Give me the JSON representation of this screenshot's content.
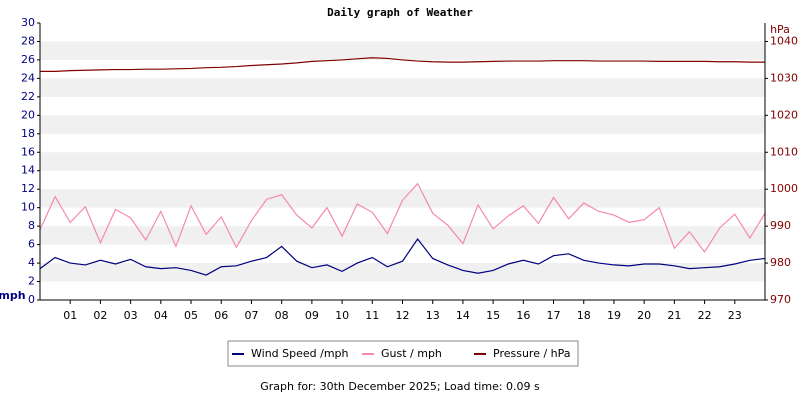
{
  "chart_data": {
    "type": "line",
    "title": "Daily graph of Weather",
    "y_label": "mph",
    "y2_label": "hPa",
    "footer": "Graph for: 30th December 2025; Load time: 0.09 s",
    "x": [
      0,
      0.5,
      1,
      1.5,
      2,
      2.5,
      3,
      3.5,
      4,
      4.5,
      5,
      5.5,
      6,
      6.5,
      7,
      7.5,
      8,
      8.5,
      9,
      9.5,
      10,
      10.5,
      11,
      11.5,
      12,
      12.5,
      13,
      13.5,
      14,
      14.5,
      15,
      15.5,
      16,
      16.5,
      17,
      17.5,
      18,
      18.5,
      19,
      19.5,
      20,
      20.5,
      21,
      21.5,
      22,
      22.5,
      23,
      23.5,
      24
    ],
    "xlim": [
      0,
      24
    ],
    "xticks": [
      {
        "value": 1,
        "label": "01"
      },
      {
        "value": 2,
        "label": "02"
      },
      {
        "value": 3,
        "label": "03"
      },
      {
        "value": 4,
        "label": "04"
      },
      {
        "value": 5,
        "label": "05"
      },
      {
        "value": 6,
        "label": "06"
      },
      {
        "value": 7,
        "label": "07"
      },
      {
        "value": 8,
        "label": "08"
      },
      {
        "value": 9,
        "label": "09"
      },
      {
        "value": 10,
        "label": "10"
      },
      {
        "value": 11,
        "label": "11"
      },
      {
        "value": 12,
        "label": "12"
      },
      {
        "value": 13,
        "label": "13"
      },
      {
        "value": 14,
        "label": "14"
      },
      {
        "value": 15,
        "label": "15"
      },
      {
        "value": 16,
        "label": "16"
      },
      {
        "value": 17,
        "label": "17"
      },
      {
        "value": 18,
        "label": "18"
      },
      {
        "value": 19,
        "label": "19"
      },
      {
        "value": 20,
        "label": "20"
      },
      {
        "value": 21,
        "label": "21"
      },
      {
        "value": 22,
        "label": "22"
      },
      {
        "value": 23,
        "label": "23"
      }
    ],
    "ylim": [
      0,
      30
    ],
    "yticks": [
      0,
      2,
      4,
      6,
      8,
      10,
      12,
      14,
      16,
      18,
      20,
      22,
      24,
      26,
      28,
      30
    ],
    "y2lim": [
      970,
      1045
    ],
    "y2ticks": [
      970,
      980,
      990,
      1000,
      1010,
      1020,
      1030,
      1040
    ],
    "y_color": "#000080",
    "y2_color": "#800000",
    "banded_background": true,
    "series": [
      {
        "name": "Gust / mph",
        "color": "#f58aab",
        "values": [
          7.6,
          11.2,
          8.4,
          10.1,
          6.2,
          9.8,
          8.9,
          6.5,
          9.6,
          5.8,
          10.2,
          7.1,
          9.0,
          5.7,
          8.6,
          10.9,
          11.4,
          9.2,
          7.8,
          10.0,
          6.9,
          10.4,
          9.5,
          7.2,
          10.8,
          12.6,
          9.4,
          8.1,
          6.1,
          10.3,
          7.7,
          9.1,
          10.2,
          8.3,
          11.1,
          8.8,
          10.5,
          9.6,
          9.2,
          8.4,
          8.7,
          10.0,
          5.6,
          7.4,
          5.2,
          7.8,
          9.3,
          6.7,
          9.4
        ]
      },
      {
        "name": "Wind Speed /mph",
        "color": "#000080",
        "values": [
          3.4,
          4.6,
          4.0,
          3.8,
          4.3,
          3.9,
          4.4,
          3.6,
          3.4,
          3.5,
          3.2,
          2.7,
          3.6,
          3.7,
          4.2,
          4.6,
          5.8,
          4.2,
          3.5,
          3.8,
          3.1,
          4.0,
          4.6,
          3.6,
          4.2,
          6.6,
          4.5,
          3.8,
          3.2,
          2.9,
          3.2,
          3.9,
          4.3,
          3.9,
          4.8,
          5.0,
          4.3,
          4.0,
          3.8,
          3.7,
          3.9,
          3.9,
          3.7,
          3.4,
          3.5,
          3.6,
          3.9,
          4.3,
          4.5
        ]
      },
      {
        "name": "Pressure / hPa",
        "color": "#800000",
        "axis": "y2",
        "values": [
          1031.9,
          1031.9,
          1032.1,
          1032.2,
          1032.3,
          1032.4,
          1032.4,
          1032.5,
          1032.5,
          1032.6,
          1032.7,
          1032.9,
          1033.0,
          1033.2,
          1033.5,
          1033.7,
          1033.9,
          1034.2,
          1034.6,
          1034.8,
          1035.0,
          1035.3,
          1035.6,
          1035.4,
          1035.0,
          1034.7,
          1034.5,
          1034.4,
          1034.4,
          1034.5,
          1034.6,
          1034.7,
          1034.7,
          1034.7,
          1034.8,
          1034.8,
          1034.8,
          1034.7,
          1034.7,
          1034.7,
          1034.7,
          1034.6,
          1034.6,
          1034.6,
          1034.6,
          1034.5,
          1034.5,
          1034.4,
          1034.4
        ]
      }
    ],
    "legend_order": [
      1,
      0,
      2
    ]
  }
}
